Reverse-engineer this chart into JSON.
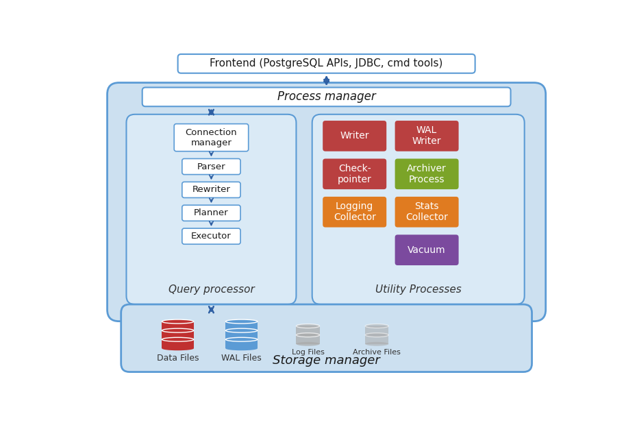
{
  "bg_color": "#ffffff",
  "light_blue_bg": "#cce0f0",
  "inner_panel_bg": "#daeaf6",
  "white_box": "#ffffff",
  "box_border": "#5b9bd5",
  "arrow_color": "#2e5fa3",
  "frontend_text": "Frontend (PostgreSQL APIs, JDBC, cmd tools)",
  "process_manager_text": "Process manager",
  "query_processor_text": "Query processor",
  "utility_processes_text": "Utility Processes",
  "storage_manager_text": "Storage manager",
  "utility_boxes": [
    {
      "text": "Writer",
      "color": "#b94040",
      "col": 0,
      "row": 0
    },
    {
      "text": "WAL\nWriter",
      "color": "#b94040",
      "col": 1,
      "row": 0
    },
    {
      "text": "Check-\npointer",
      "color": "#b94040",
      "col": 0,
      "row": 1
    },
    {
      "text": "Archiver\nProcess",
      "color": "#7ba428",
      "col": 1,
      "row": 1
    },
    {
      "text": "Logging\nCollector",
      "color": "#e07b20",
      "col": 0,
      "row": 2
    },
    {
      "text": "Stats\nCollector",
      "color": "#e07b20",
      "col": 1,
      "row": 2
    },
    {
      "text": "Vacuum",
      "color": "#7b4a9e",
      "col": 1,
      "row": 3
    }
  ],
  "storage_items": [
    {
      "text": "Data Files",
      "color": "#c03030",
      "alpha": 1.0
    },
    {
      "text": "WAL Files",
      "color": "#5b9bd5",
      "alpha": 1.0
    },
    {
      "text": "Log Files",
      "color": "#aaaaaa",
      "alpha": 0.7
    },
    {
      "text": "Archive Files",
      "color": "#aaaaaa",
      "alpha": 0.55
    }
  ]
}
